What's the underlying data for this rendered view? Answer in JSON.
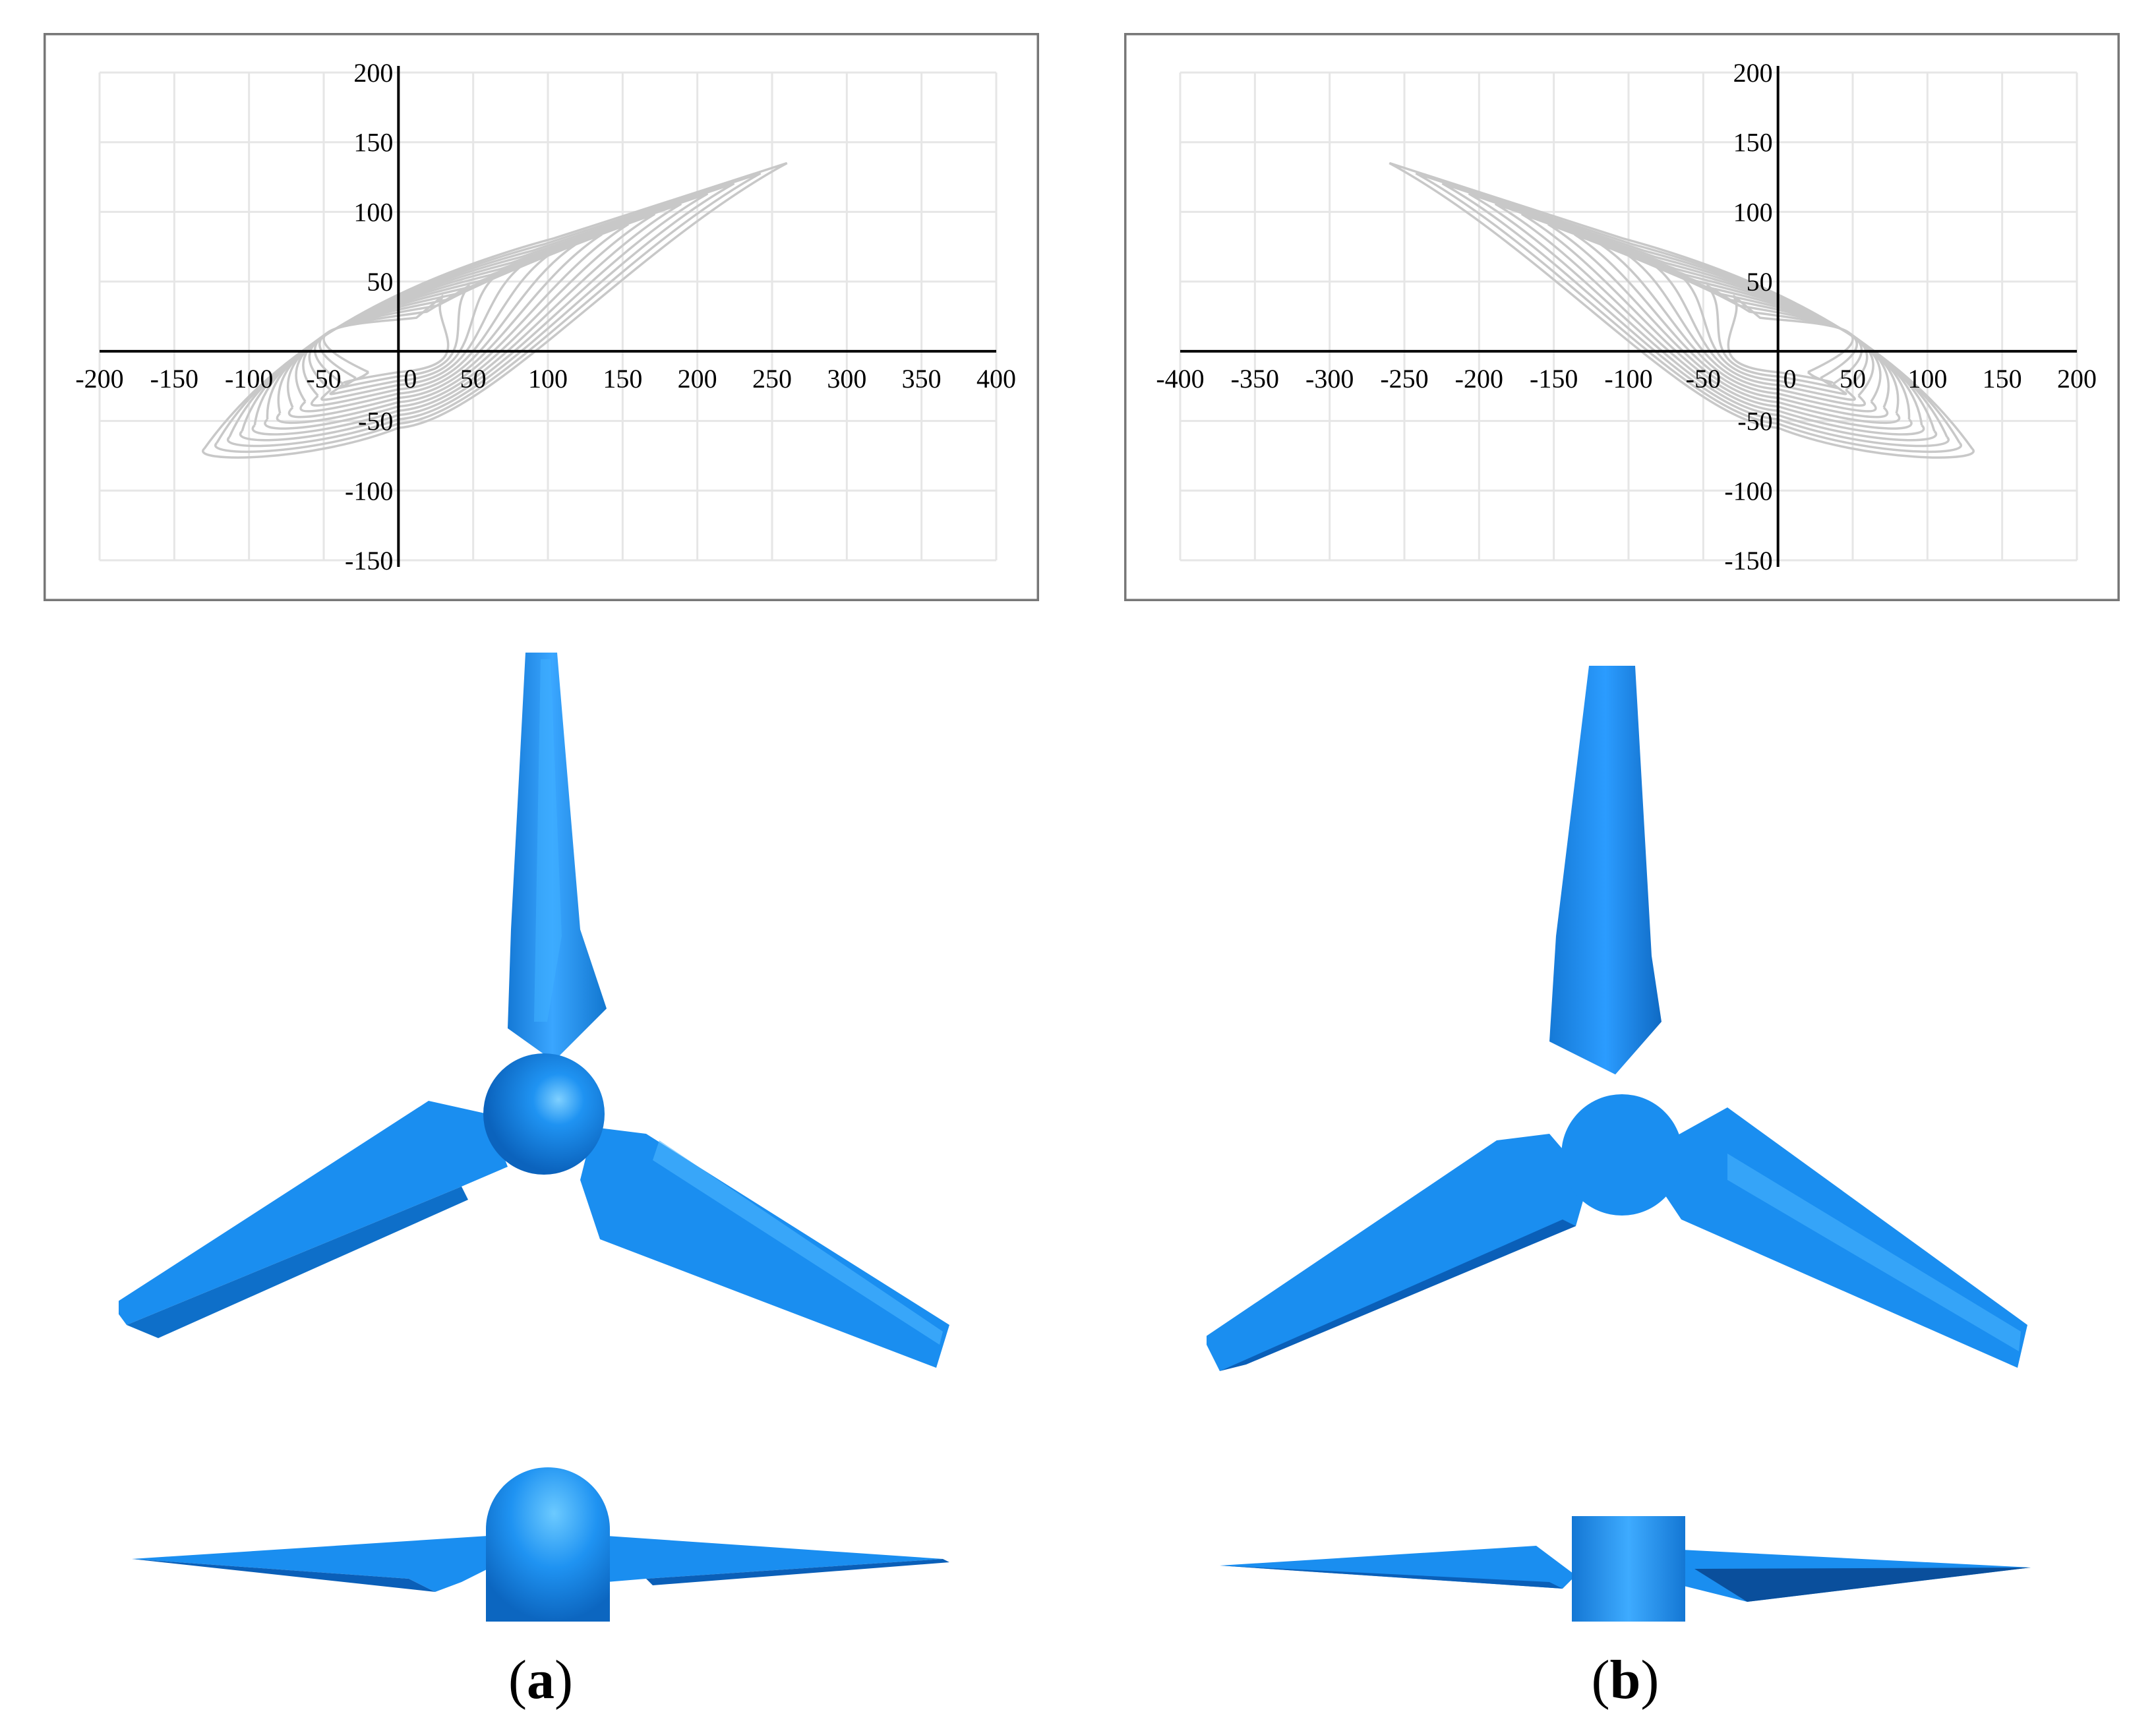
{
  "figure": {
    "panels": [
      {
        "id": "a",
        "caption_letter": "a",
        "plot": {
          "x_ticks": [
            "-200",
            "-150",
            "-100",
            "-50",
            "0",
            "50",
            "100",
            "150",
            "200",
            "250",
            "300",
            "350",
            "400"
          ],
          "y_ticks": [
            "200",
            "150",
            "100",
            "50",
            "-50",
            "-100",
            "-150"
          ]
        }
      },
      {
        "id": "b",
        "caption_letter": "b",
        "plot": {
          "x_ticks": [
            "-400",
            "-350",
            "-300",
            "-250",
            "-200",
            "-150",
            "-100",
            "-50",
            "0",
            "50",
            "100",
            "150",
            "200"
          ],
          "y_ticks": [
            "200",
            "150",
            "100",
            "50",
            "-50",
            "-100",
            "-150"
          ]
        }
      }
    ],
    "colors": {
      "blade": "#1a8ef0",
      "blade_dark": "#0a5fb8",
      "curve": "#c8c8c8",
      "grid": "#e6e6e6",
      "frame": "#777777"
    }
  },
  "chart_data": [
    {
      "type": "line",
      "xlim": [
        -200,
        400
      ],
      "ylim": [
        -150,
        200
      ],
      "grid": true,
      "series_description": "family of nested airfoil section profiles",
      "series": [
        {
          "values": [
            [
              -130,
              -70
            ],
            [
              -100,
              0
            ],
            [
              0,
              40
            ],
            [
              260,
              135
            ]
          ]
        },
        {
          "values": [
            [
              -95,
              0
            ],
            [
              70,
              0
            ],
            [
              250,
              100
            ]
          ]
        },
        {
          "values": [
            [
              0,
              -55
            ],
            [
              100,
              10
            ],
            [
              250,
              80
            ]
          ]
        }
      ]
    },
    {
      "type": "line",
      "xlim": [
        -400,
        200
      ],
      "ylim": [
        -150,
        200
      ],
      "grid": true,
      "series_description": "family of nested airfoil section profiles (mirrored)",
      "series": [
        {
          "values": [
            [
              130,
              -70
            ],
            [
              100,
              0
            ],
            [
              0,
              40
            ],
            [
              -260,
              140
            ]
          ]
        },
        {
          "values": [
            [
              95,
              0
            ],
            [
              -70,
              0
            ],
            [
              -250,
              100
            ]
          ]
        },
        {
          "values": [
            [
              0,
              -55
            ],
            [
              -100,
              10
            ],
            [
              -250,
              80
            ]
          ]
        }
      ]
    }
  ]
}
